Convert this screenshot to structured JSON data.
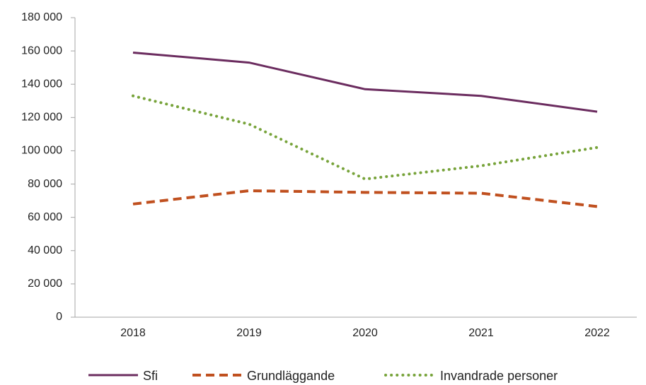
{
  "chart_data": {
    "type": "line",
    "categories": [
      "2018",
      "2019",
      "2020",
      "2021",
      "2022"
    ],
    "series": [
      {
        "name": "Sfi",
        "color": "#6b2c5f",
        "dash": "solid",
        "values": [
          159000,
          153000,
          137000,
          133000,
          123500
        ]
      },
      {
        "name": "Grundläggande",
        "color": "#c0501f",
        "dash": "dashed",
        "values": [
          68000,
          76000,
          75000,
          74500,
          66500
        ]
      },
      {
        "name": "Invandrade personer",
        "color": "#77a33a",
        "dash": "dotted",
        "values": [
          133000,
          116000,
          83000,
          91000,
          102000
        ]
      }
    ],
    "ylim": [
      0,
      180000
    ],
    "yticks": [
      0,
      {
        "value": 20000,
        "label": "20 000"
      },
      {
        "value": 40000,
        "label": "40 000"
      },
      {
        "value": 60000,
        "label": "60 000"
      },
      {
        "value": 80000,
        "label": "80 000"
      },
      {
        "value": 100000,
        "label": "100 000"
      },
      {
        "value": 120000,
        "label": "120 000"
      },
      {
        "value": 140000,
        "label": "140 000"
      },
      {
        "value": 160000,
        "label": "160 000"
      },
      {
        "value": 180000,
        "label": "180 000"
      }
    ],
    "grid": false,
    "legend": "bottom"
  }
}
